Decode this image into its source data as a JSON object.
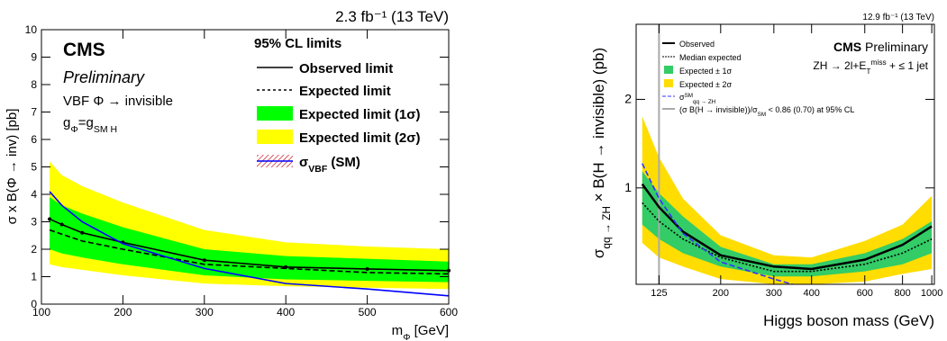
{
  "chart_data": [
    {
      "type": "line",
      "lumi": "2.3 fb⁻¹ (13 TeV)",
      "cms": "CMS",
      "preliminary": "Preliminary",
      "annotations": [
        "VBF Φ → invisible",
        [
          "g",
          "Φ",
          "=g",
          "SM H"
        ]
      ],
      "legend_title": "95% CL limits",
      "x_label": [
        "m",
        "Φ",
        " [GeV]"
      ],
      "y_label": "σ x B(Φ → inv) [pb]",
      "x": [
        110,
        125,
        150,
        200,
        300,
        400,
        500,
        600
      ],
      "xlim": [
        100,
        600
      ],
      "xticks": [
        100,
        200,
        300,
        400,
        500,
        600
      ],
      "ylim": [
        0,
        10
      ],
      "yticks": [
        0,
        1,
        2,
        3,
        4,
        5,
        6,
        7,
        8,
        9,
        10
      ],
      "series": [
        {
          "name": "Observed limit",
          "color": "#000000",
          "style": "solid",
          "markers": true,
          "values": [
            3.1,
            2.9,
            2.6,
            2.25,
            1.6,
            1.35,
            1.28,
            1.22
          ]
        },
        {
          "name": "Expected limit",
          "color": "#000000",
          "style": "dashed",
          "values": [
            2.7,
            2.55,
            2.3,
            2.0,
            1.45,
            1.3,
            1.15,
            1.1
          ]
        },
        {
          "name": "Expected limit (1σ)",
          "color": "#00ff00",
          "lower": [
            2.0,
            1.85,
            1.7,
            1.45,
            1.05,
            0.9,
            0.85,
            0.8
          ],
          "upper": [
            3.9,
            3.6,
            3.3,
            2.8,
            2.0,
            1.75,
            1.65,
            1.55
          ]
        },
        {
          "name": "Expected limit (2σ)",
          "color": "#ffff00",
          "lower": [
            1.45,
            1.35,
            1.25,
            1.05,
            0.75,
            0.65,
            0.6,
            0.55
          ],
          "upper": [
            5.2,
            4.7,
            4.3,
            3.7,
            2.7,
            2.25,
            2.1,
            2.0
          ]
        },
        {
          "name": [
            "σ",
            "VBF",
            " (SM)"
          ],
          "color": "#0000ff",
          "style": "solid",
          "values": [
            4.1,
            3.6,
            3.0,
            2.2,
            1.3,
            0.75,
            0.55,
            0.3
          ]
        }
      ]
    },
    {
      "type": "line",
      "lumi": "12.9 fb⁻¹ (13 TeV)",
      "cms": "CMS",
      "preliminary": "Preliminary",
      "annotations": [
        [
          "ZH → 2l+E",
          "T",
          "miss",
          " + ≤ 1 jet"
        ]
      ],
      "x_label": "Higgs boson mass (GeV)",
      "y_label": [
        "σ",
        "qq → ZH",
        " × B(H → invisible) (pb)"
      ],
      "log_x": true,
      "log_y": true,
      "x": [
        110,
        125,
        150,
        200,
        300,
        400,
        600,
        800,
        1000
      ],
      "xlim": [
        105,
        1020
      ],
      "xticks": [
        125,
        200,
        300,
        400,
        600,
        800,
        1000
      ],
      "ylim": [
        0.47,
        3.6
      ],
      "yticks": [
        1,
        2
      ],
      "series": [
        {
          "name": "Observed",
          "color": "#000000",
          "style": "solid",
          "values": [
            1.03,
            0.86,
            0.71,
            0.59,
            0.54,
            0.53,
            0.57,
            0.64,
            0.74
          ]
        },
        {
          "name": "Median expected",
          "color": "#000000",
          "style": "dotted",
          "values": [
            0.89,
            0.77,
            0.67,
            0.58,
            0.52,
            0.52,
            0.55,
            0.6,
            0.67
          ]
        },
        {
          "name": "Expected ± 1σ",
          "color": "#33cc66",
          "lower": [
            0.75,
            0.67,
            0.6,
            0.54,
            0.5,
            0.5,
            0.52,
            0.55,
            0.6
          ],
          "upper": [
            1.14,
            0.96,
            0.8,
            0.63,
            0.55,
            0.55,
            0.6,
            0.67,
            0.77
          ]
        },
        {
          "name": "Expected ± 2σ",
          "color": "#ffdd00",
          "lower": [
            0.65,
            0.58,
            0.54,
            0.49,
            0.47,
            0.47,
            0.48,
            0.51,
            0.53
          ],
          "upper": [
            1.75,
            1.27,
            0.92,
            0.69,
            0.59,
            0.58,
            0.66,
            0.75,
            0.94
          ]
        },
        {
          "name": [
            "σ",
            "SM",
            "qq → ZH"
          ],
          "color": "#3333ff",
          "style": "dashed",
          "values": [
            1.21,
            0.92,
            0.7,
            0.56,
            0.49,
            0.45,
            null,
            null,
            null
          ]
        }
      ],
      "vline": {
        "value": 125,
        "color": "#aaaaaa",
        "name": [
          "(σ B(H → invisible))/σ",
          "SM",
          " < 0.86 (0.70) at 95% CL"
        ]
      }
    }
  ]
}
